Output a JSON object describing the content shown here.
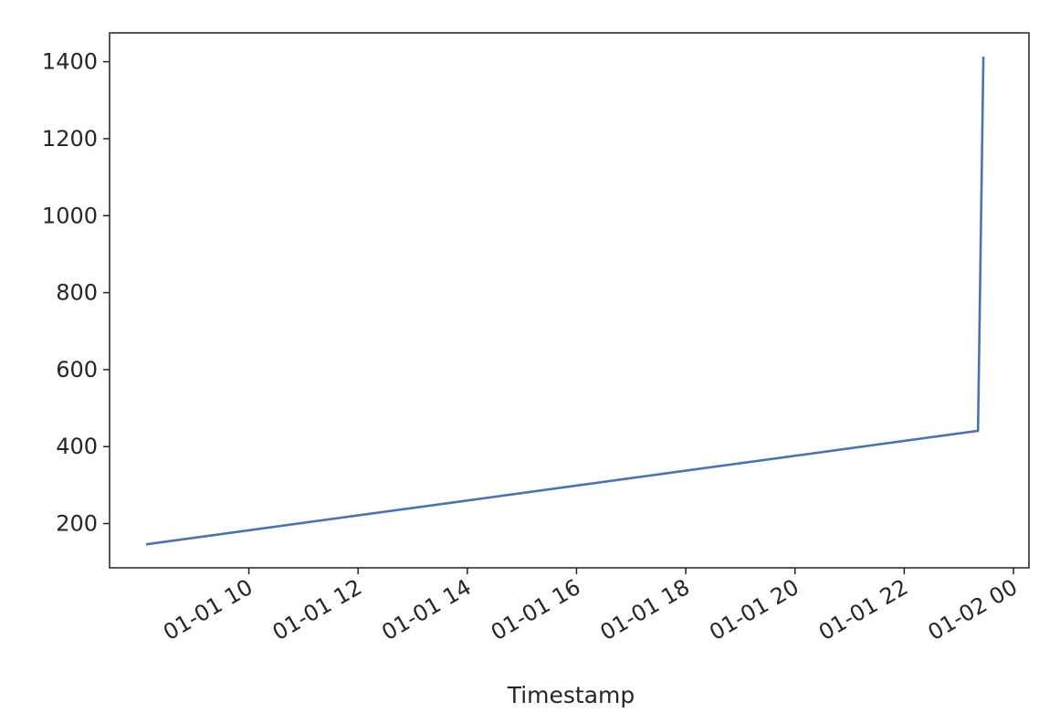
{
  "chart_data": {
    "type": "line",
    "title": "",
    "xlabel": "Timestamp",
    "ylabel": "",
    "xlim": [
      "2021-01-01 07:27",
      "2021-01-02 00:17"
    ],
    "ylim": [
      85,
      1475
    ],
    "grid": false,
    "legend": "none",
    "x_ticks": [
      {
        "value": "2021-01-01 10:00",
        "label": "01-01 10"
      },
      {
        "value": "2021-01-01 12:00",
        "label": "01-01 12"
      },
      {
        "value": "2021-01-01 14:00",
        "label": "01-01 14"
      },
      {
        "value": "2021-01-01 16:00",
        "label": "01-01 16"
      },
      {
        "value": "2021-01-01 18:00",
        "label": "01-01 18"
      },
      {
        "value": "2021-01-01 20:00",
        "label": "01-01 20"
      },
      {
        "value": "2021-01-01 22:00",
        "label": "01-01 22"
      },
      {
        "value": "2021-01-02 00:00",
        "label": "01-02 00"
      }
    ],
    "y_ticks": [
      {
        "value": 200,
        "label": "200"
      },
      {
        "value": 400,
        "label": "400"
      },
      {
        "value": 600,
        "label": "600"
      },
      {
        "value": 800,
        "label": "800"
      },
      {
        "value": 1000,
        "label": "1000"
      },
      {
        "value": 1200,
        "label": "1200"
      },
      {
        "value": 1400,
        "label": "1400"
      }
    ],
    "series": [
      {
        "color": "#4c72b0",
        "points": [
          {
            "x": "2021-01-01 08:07",
            "y": 146
          },
          {
            "x": "2021-01-01 23:21",
            "y": 441
          },
          {
            "x": "2021-01-01 23:27",
            "y": 1413
          }
        ]
      }
    ]
  }
}
